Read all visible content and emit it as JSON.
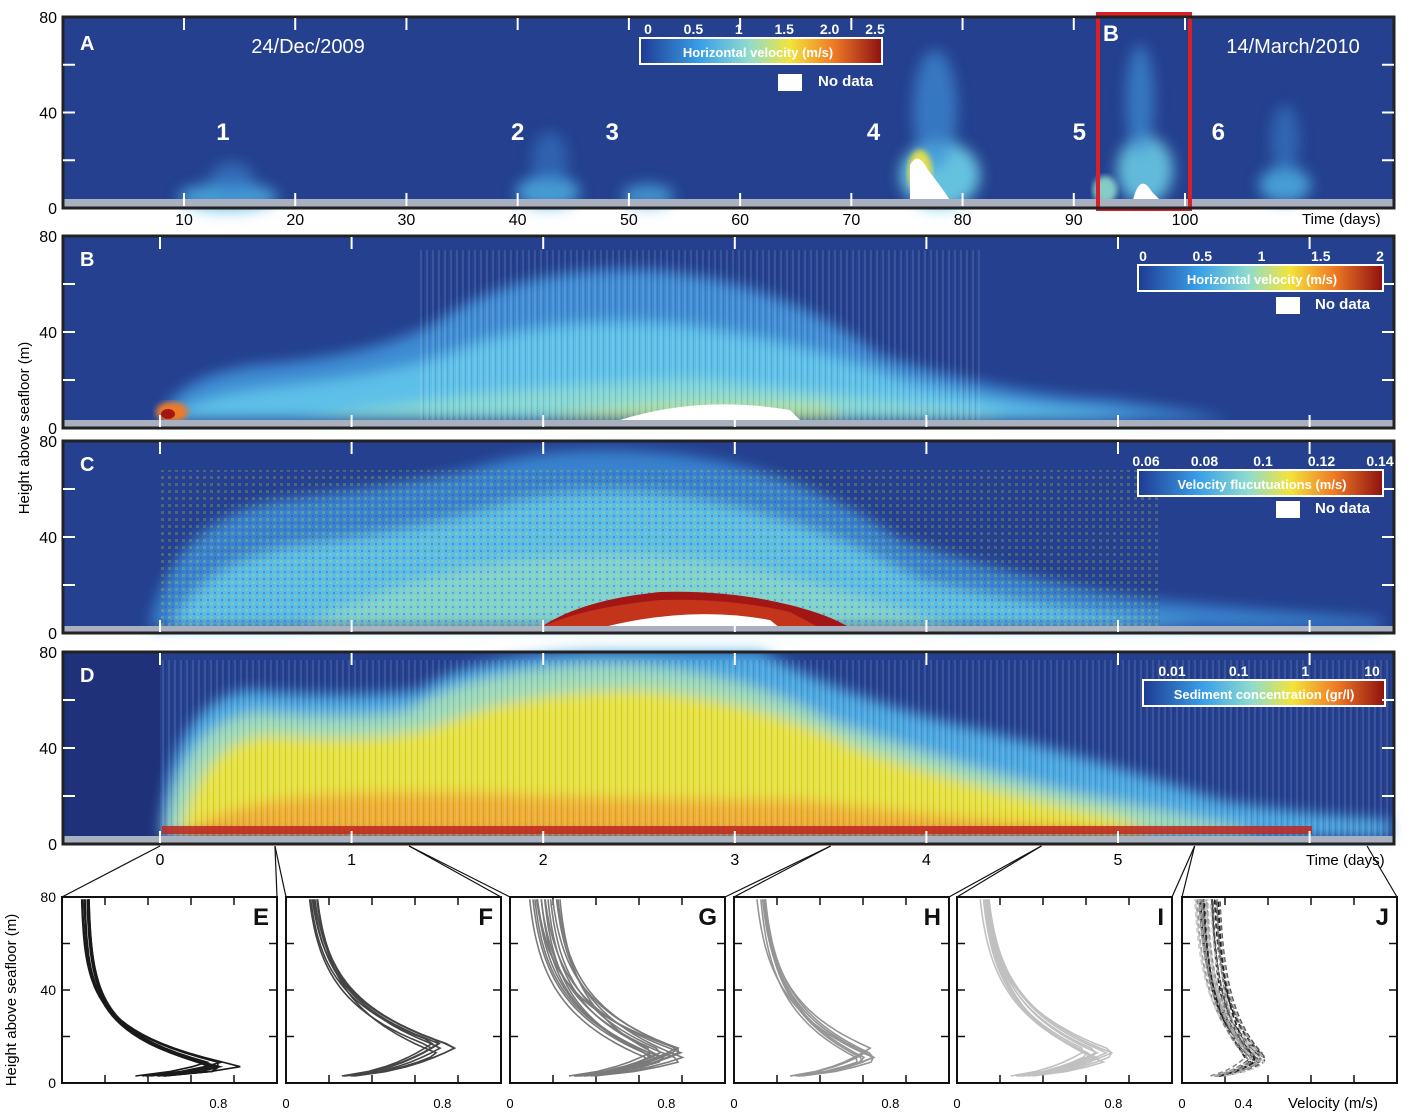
{
  "figure": {
    "ylabel": "Height above seafloor (m)",
    "x_days_label": "Time (days)"
  },
  "chart_data": [
    {
      "type": "heatmap",
      "panel": "A",
      "date_start": "24/Dec/2009",
      "date_end": "14/March/2010",
      "xlabel": "Time (days)",
      "xlim": [
        0,
        110
      ],
      "ylim": [
        0,
        80
      ],
      "x_ticks": [
        10,
        20,
        30,
        40,
        50,
        60,
        70,
        80,
        90,
        100
      ],
      "y_ticks": [
        0,
        40,
        80
      ],
      "colorbar": {
        "label": "Horizontal velocity (m/s)",
        "ticks": [
          "0",
          "0.5",
          "1",
          "1.5",
          "2.0",
          "2.5"
        ]
      },
      "no_data_label": "No data",
      "events": [
        {
          "label": "1",
          "x": 13.5
        },
        {
          "label": "2",
          "x": 40
        },
        {
          "label": "3",
          "x": 48.5
        },
        {
          "label": "4",
          "x": 72
        },
        {
          "label": "5",
          "x": 90.5
        },
        {
          "label": "6",
          "x": 103
        }
      ],
      "highlight": {
        "label": "B",
        "x_range": [
          86.5,
          92.5
        ]
      },
      "colors": {
        "background": "#24408f",
        "highlight_box": "#d92027"
      }
    },
    {
      "type": "heatmap",
      "panel": "B",
      "xlim": [
        -0.5,
        6.3
      ],
      "ylim": [
        0,
        80
      ],
      "y_ticks": [
        0,
        40,
        80
      ],
      "colorbar": {
        "label": "Horizontal velocity (m/s)",
        "ticks": [
          "0",
          "0.5",
          "1",
          "1.5",
          "2"
        ]
      },
      "no_data_label": "No data"
    },
    {
      "type": "heatmap",
      "panel": "C",
      "xlim": [
        -0.5,
        6.3
      ],
      "ylim": [
        0,
        80
      ],
      "y_ticks": [
        0,
        40,
        80
      ],
      "colorbar": {
        "label": "Velocity flucutuations (m/s)",
        "ticks": [
          "0.06",
          "0.08",
          "0.1",
          "0.12",
          "0.14"
        ]
      },
      "no_data_label": "No data"
    },
    {
      "type": "heatmap",
      "panel": "D",
      "xlabel": "Time (days)",
      "xlim": [
        -0.5,
        6.3
      ],
      "ylim": [
        0,
        80
      ],
      "y_ticks": [
        0,
        40,
        80
      ],
      "x_ticks": [
        0,
        1,
        2,
        3,
        4,
        5
      ],
      "colorbar": {
        "label": "Sediment concentration (gr/l)",
        "ticks": [
          "0.01",
          "0.1",
          "1",
          "10"
        ]
      },
      "profile_windows": [
        [
          0,
          0.6
        ],
        [
          0.6,
          1.3
        ],
        [
          1.3,
          3.5
        ],
        [
          3.5,
          4.6
        ],
        [
          4.6,
          5.4
        ],
        [
          5.4,
          6.3
        ]
      ]
    },
    {
      "type": "line",
      "panels": [
        "E",
        "F",
        "G",
        "H",
        "I",
        "J"
      ],
      "ylabel": "Height above seafloor (m)",
      "xlabel": "Velocity (m/s)",
      "ylim": [
        0,
        80
      ],
      "y_ticks": [
        0,
        40,
        80
      ],
      "x_tick_labels": [
        {
          "panel": "E",
          "labels": [
            "0.8"
          ]
        },
        {
          "panel": "F",
          "labels": [
            "0",
            "0.8"
          ]
        },
        {
          "panel": "G",
          "labels": [
            "0",
            "0.8"
          ]
        },
        {
          "panel": "H",
          "labels": [
            "0",
            "0.8"
          ]
        },
        {
          "panel": "I",
          "labels": [
            "0",
            "0.8"
          ]
        },
        {
          "panel": "J",
          "labels": [
            "0",
            "0.4"
          ]
        }
      ],
      "series_colors": [
        "#1a1a1a",
        "#444444",
        "#7a7a7a",
        "#959595",
        "#c0c0c0",
        "#555555"
      ],
      "profiles": {
        "E": {
          "nose_height": 7,
          "nose_velocity": 0.85,
          "count": 10
        },
        "F": {
          "nose_height": 15,
          "nose_velocity": 0.82,
          "count": 8
        },
        "G": {
          "nose_height": 12,
          "nose_velocity": 0.82,
          "count": 16
        },
        "H": {
          "nose_height": 12,
          "nose_velocity": 0.7,
          "count": 8
        },
        "I": {
          "nose_height": 11,
          "nose_velocity": 0.74,
          "count": 10
        },
        "J": {
          "nose_height": 10,
          "nose_velocity": 0.5,
          "count": 40
        }
      }
    }
  ]
}
